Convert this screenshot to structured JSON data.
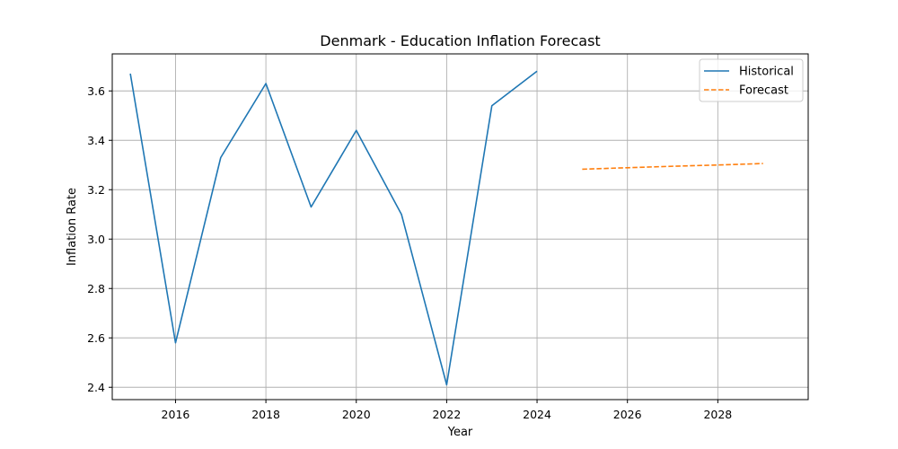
{
  "chart_data": {
    "type": "line",
    "title": "Denmark - Education Inflation Forecast",
    "xlabel": "Year",
    "ylabel": "Inflation Rate",
    "xlim": [
      2014.6,
      2030.0
    ],
    "ylim": [
      2.35,
      3.75
    ],
    "xticks": [
      2016,
      2018,
      2020,
      2022,
      2024,
      2026,
      2028
    ],
    "yticks": [
      2.4,
      2.6,
      2.8,
      3.0,
      3.2,
      3.4,
      3.6
    ],
    "grid": true,
    "legend_position": "top-right",
    "series": [
      {
        "name": "Historical",
        "color": "#1f77b4",
        "style": "solid",
        "x": [
          2015,
          2016,
          2017,
          2018,
          2019,
          2020,
          2021,
          2022,
          2023,
          2024
        ],
        "y": [
          3.67,
          2.58,
          3.33,
          3.63,
          3.13,
          3.44,
          3.1,
          2.41,
          3.54,
          3.68
        ]
      },
      {
        "name": "Forecast",
        "color": "#ff7f0e",
        "style": "dashed",
        "x": [
          2025,
          2026,
          2027,
          2028,
          2029
        ],
        "y": [
          3.283,
          3.289,
          3.295,
          3.3,
          3.306
        ]
      }
    ]
  }
}
